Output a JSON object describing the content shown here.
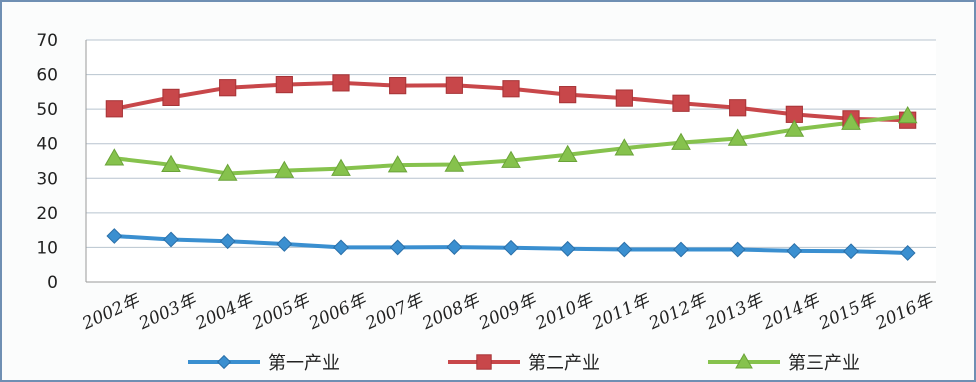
{
  "chart_data": {
    "type": "line",
    "title": "",
    "xlabel": "",
    "ylabel": "",
    "categories": [
      "2002年",
      "2003年",
      "2004年",
      "2005年",
      "2006年",
      "2007年",
      "2008年",
      "2009年",
      "2010年",
      "2011年",
      "2012年",
      "2013年",
      "2014年",
      "2015年",
      "2016年"
    ],
    "ylim": [
      0,
      70
    ],
    "yticks": [
      "0",
      "10",
      "20",
      "30",
      "40",
      "50",
      "60",
      "70"
    ],
    "grid": true,
    "legend_position": "bottom",
    "series": [
      {
        "name": "第一产业",
        "color": "#3a8fd0",
        "marker": "diamond",
        "values": [
          13.3,
          12.3,
          11.8,
          11.0,
          10.0,
          10.0,
          10.1,
          9.9,
          9.6,
          9.4,
          9.4,
          9.4,
          9.0,
          8.9,
          8.4
        ]
      },
      {
        "name": "第二产业",
        "color": "#c8474a",
        "marker": "square",
        "values": [
          50.1,
          53.4,
          56.2,
          57.1,
          57.6,
          56.8,
          56.9,
          55.9,
          54.2,
          53.2,
          51.7,
          50.4,
          48.5,
          47.2,
          46.8
        ]
      },
      {
        "name": "第三产业",
        "color": "#86c24d",
        "marker": "triangle",
        "values": [
          35.8,
          33.9,
          31.4,
          32.2,
          32.8,
          33.8,
          34.0,
          35.1,
          36.8,
          38.7,
          40.3,
          41.5,
          44.1,
          46.1,
          48.0
        ]
      }
    ]
  }
}
